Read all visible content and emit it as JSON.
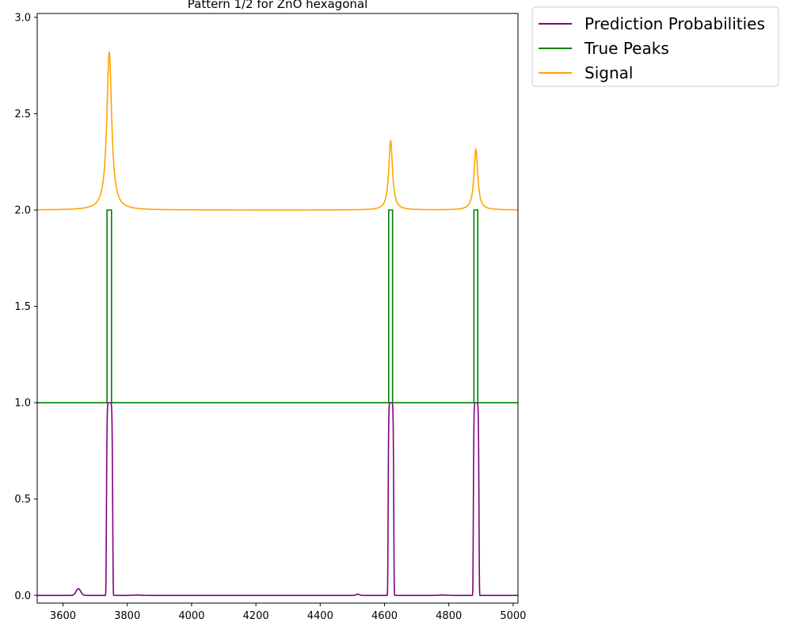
{
  "chart_data": {
    "type": "line",
    "title": "Pattern 1/2 for ZnO hexagonal",
    "xlabel": "",
    "ylabel": "",
    "xlim": [
      3520,
      5015
    ],
    "ylim": [
      -0.04,
      3.02
    ],
    "xticks": [
      3600,
      3800,
      4000,
      4200,
      4400,
      4600,
      4800,
      5000
    ],
    "yticks": [
      0.0,
      0.5,
      1.0,
      1.5,
      2.0,
      2.5,
      3.0
    ],
    "grid": false,
    "legend_position": "outside-top-right",
    "series": [
      {
        "name": "Prediction Probabilities",
        "color": "#800080",
        "offset": 0,
        "baseline": 0,
        "peaks": [
          {
            "x": 3745,
            "height": 1.0,
            "kind": "box",
            "halfwidth": 10
          },
          {
            "x": 4620,
            "height": 1.0,
            "kind": "box",
            "halfwidth": 9
          },
          {
            "x": 4885,
            "height": 1.0,
            "kind": "box",
            "halfwidth": 9
          },
          {
            "x": 3648,
            "height": 0.035,
            "kind": "gauss",
            "width": 7
          },
          {
            "x": 4517,
            "height": 0.006,
            "kind": "gauss",
            "width": 5
          },
          {
            "x": 3830,
            "height": 0.002,
            "kind": "gauss",
            "width": 10
          },
          {
            "x": 4780,
            "height": 0.002,
            "kind": "gauss",
            "width": 10
          }
        ]
      },
      {
        "name": "True Peaks",
        "color": "#008000",
        "offset": 1,
        "baseline": 0,
        "steps": [
          {
            "start": 3737,
            "end": 3751,
            "height": 1.0
          },
          {
            "start": 4613,
            "end": 4625,
            "height": 1.0
          },
          {
            "start": 4878,
            "end": 4890,
            "height": 1.0
          }
        ]
      },
      {
        "name": "Signal",
        "color": "#FFA500",
        "offset": 2,
        "baseline": 0,
        "peaks": [
          {
            "x": 3744,
            "height": 0.82,
            "kind": "lorentz",
            "gamma": 9
          },
          {
            "x": 4619,
            "height": 0.36,
            "kind": "lorentz",
            "gamma": 7
          },
          {
            "x": 4884,
            "height": 0.315,
            "kind": "lorentz",
            "gamma": 7
          }
        ]
      }
    ]
  }
}
